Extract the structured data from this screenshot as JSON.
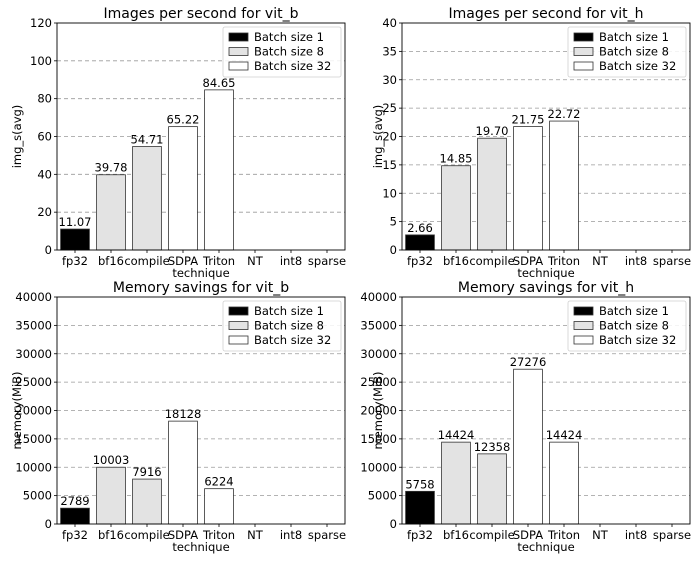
{
  "chart_data": [
    {
      "type": "bar",
      "title": "Images per second for vit_b",
      "xlabel": "technique",
      "ylabel": "img_s(avg)",
      "ylim": [
        0,
        120
      ],
      "yticks": [
        "0",
        "20",
        "40",
        "60",
        "80",
        "100",
        "120"
      ],
      "categories": [
        "fp32",
        "bf16",
        "compile",
        "SDPA",
        "Triton",
        "NT",
        "int8",
        "sparse"
      ],
      "legend": [
        "Batch size 1",
        "Batch size 8",
        "Batch size 32"
      ],
      "series_colors": [
        "#000000",
        "#e3e3e3",
        "#ffffff"
      ],
      "bars": [
        {
          "series": 0,
          "value": 11.07,
          "label": "11.07"
        },
        {
          "series": 1,
          "value": 39.78,
          "label": "39.78"
        },
        {
          "series": 1,
          "value": 54.71,
          "label": "54.71"
        },
        {
          "series": 2,
          "value": 65.22,
          "label": "65.22"
        },
        {
          "series": 2,
          "value": 84.65,
          "label": "84.65"
        }
      ]
    },
    {
      "type": "bar",
      "title": "Images per second for vit_h",
      "xlabel": "technique",
      "ylabel": "img_s(avg)",
      "ylim": [
        0,
        40
      ],
      "yticks": [
        "0",
        "5",
        "10",
        "15",
        "20",
        "25",
        "30",
        "35",
        "40"
      ],
      "categories": [
        "fp32",
        "bf16",
        "compile",
        "SDPA",
        "Triton",
        "NT",
        "int8",
        "sparse"
      ],
      "legend": [
        "Batch size 1",
        "Batch size 8",
        "Batch size 32"
      ],
      "series_colors": [
        "#000000",
        "#e3e3e3",
        "#ffffff"
      ],
      "bars": [
        {
          "series": 0,
          "value": 2.66,
          "label": "2.66"
        },
        {
          "series": 1,
          "value": 14.85,
          "label": "14.85"
        },
        {
          "series": 1,
          "value": 19.7,
          "label": "19.70"
        },
        {
          "series": 2,
          "value": 21.75,
          "label": "21.75"
        },
        {
          "series": 2,
          "value": 22.72,
          "label": "22.72"
        }
      ]
    },
    {
      "type": "bar",
      "title": "Memory savings for vit_b",
      "xlabel": "technique",
      "ylabel": "memory(MiB)",
      "ylim": [
        0,
        40000
      ],
      "yticks": [
        "0",
        "5000",
        "10000",
        "15000",
        "20000",
        "25000",
        "30000",
        "35000",
        "40000"
      ],
      "categories": [
        "fp32",
        "bf16",
        "compile",
        "SDPA",
        "Triton",
        "NT",
        "int8",
        "sparse"
      ],
      "legend": [
        "Batch size 1",
        "Batch size 8",
        "Batch size 32"
      ],
      "series_colors": [
        "#000000",
        "#e3e3e3",
        "#ffffff"
      ],
      "bars": [
        {
          "series": 0,
          "value": 2789,
          "label": "2789"
        },
        {
          "series": 1,
          "value": 10003,
          "label": "10003"
        },
        {
          "series": 1,
          "value": 7916,
          "label": "7916"
        },
        {
          "series": 2,
          "value": 18128,
          "label": "18128"
        },
        {
          "series": 2,
          "value": 6224,
          "label": "6224"
        }
      ]
    },
    {
      "type": "bar",
      "title": "Memory savings for vit_h",
      "xlabel": "technique",
      "ylabel": "memory(MiB)",
      "ylim": [
        0,
        40000
      ],
      "yticks": [
        "0",
        "5000",
        "10000",
        "15000",
        "20000",
        "25000",
        "30000",
        "35000",
        "40000"
      ],
      "categories": [
        "fp32",
        "bf16",
        "compile",
        "SDPA",
        "Triton",
        "NT",
        "int8",
        "sparse"
      ],
      "legend": [
        "Batch size 1",
        "Batch size 8",
        "Batch size 32"
      ],
      "series_colors": [
        "#000000",
        "#e3e3e3",
        "#ffffff"
      ],
      "bars": [
        {
          "series": 0,
          "value": 5758,
          "label": "5758"
        },
        {
          "series": 1,
          "value": 14424,
          "label": "14424"
        },
        {
          "series": 1,
          "value": 12358,
          "label": "12358"
        },
        {
          "series": 2,
          "value": 27276,
          "label": "27276"
        },
        {
          "series": 2,
          "value": 14424,
          "label": "14424"
        }
      ]
    }
  ]
}
